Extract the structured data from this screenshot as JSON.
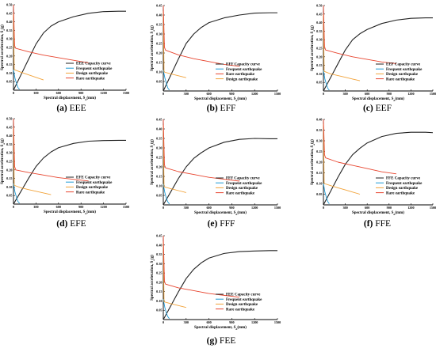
{
  "colors": {
    "capacity": "#222222",
    "frequent": "#1e9bd6",
    "design": "#f2a33a",
    "rare": "#e8452f",
    "axis": "#000000"
  },
  "common": {
    "xlabel": "Spectral displacement, S",
    "xlabel_sub": "d",
    "xlabel_unit": "(mm)",
    "ylabel": "Spectral acceleration, S",
    "ylabel_sub": "a",
    "ylabel_unit": "(g)",
    "xticks": [
      0,
      300,
      600,
      900,
      1200,
      1500
    ],
    "xlim": [
      0,
      1500
    ],
    "legend_labels": [
      "Frequent earthquake",
      "Design earthquake",
      "Rare earthquake"
    ]
  },
  "chart_data": [
    {
      "type": "line",
      "caption_letter": "(a)",
      "caption_text": "EEE",
      "ylim": [
        0,
        0.5
      ],
      "yticks": [
        0.05,
        0.1,
        0.15,
        0.2,
        0.25,
        0.3,
        0.35,
        0.4,
        0.45,
        0.5
      ],
      "legend_order": [
        "capacity",
        "frequent",
        "design",
        "rare"
      ],
      "series": [
        {
          "key": "capacity",
          "name": "EEE Capacity curve",
          "x": [
            0,
            100,
            200,
            300,
            400,
            500,
            600,
            800,
            1000,
            1200,
            1400,
            1500
          ],
          "y": [
            0,
            0.09,
            0.18,
            0.27,
            0.335,
            0.375,
            0.4,
            0.43,
            0.45,
            0.46,
            0.462,
            0.462
          ]
        },
        {
          "key": "frequent",
          "name": "Frequent earthquake",
          "x": [
            0,
            20,
            40,
            60,
            80
          ],
          "y": [
            0.12,
            0.07,
            0.04,
            0.015,
            0.005
          ]
        },
        {
          "key": "design",
          "name": "Design earthquake",
          "x": [
            0,
            10,
            100,
            200,
            300,
            400
          ],
          "y": [
            0.45,
            0.12,
            0.105,
            0.09,
            0.075,
            0.06
          ]
        },
        {
          "key": "rare",
          "name": "Rare earthquake",
          "x": [
            0,
            15,
            30,
            200,
            400,
            600,
            800,
            1000
          ],
          "y": [
            0.5,
            0.26,
            0.245,
            0.225,
            0.205,
            0.19,
            0.175,
            0.16
          ]
        }
      ]
    },
    {
      "type": "line",
      "caption_letter": "(b)",
      "caption_text": "EFF",
      "ylim": [
        0,
        0.45
      ],
      "yticks": [
        0.05,
        0.1,
        0.15,
        0.2,
        0.25,
        0.3,
        0.35,
        0.4,
        0.45
      ],
      "legend_order": [
        "capacity",
        "frequent",
        "rare",
        "design"
      ],
      "series": [
        {
          "key": "capacity",
          "name": "EFF Capacity curve",
          "x": [
            0,
            100,
            200,
            300,
            400,
            500,
            600,
            800,
            1000,
            1200,
            1400,
            1500
          ],
          "y": [
            0,
            0.085,
            0.17,
            0.25,
            0.3,
            0.335,
            0.36,
            0.385,
            0.4,
            0.41,
            0.412,
            0.412
          ]
        },
        {
          "key": "frequent",
          "name": "Frequent earthquake",
          "x": [
            0,
            20,
            40,
            60,
            80
          ],
          "y": [
            0.11,
            0.07,
            0.04,
            0.015,
            0.005
          ]
        },
        {
          "key": "design",
          "name": "Design earthquake",
          "x": [
            0,
            10,
            100,
            200,
            300
          ],
          "y": [
            0.42,
            0.1,
            0.09,
            0.08,
            0.07
          ]
        },
        {
          "key": "rare",
          "name": "Rare earthquake",
          "x": [
            0,
            15,
            30,
            200,
            400,
            600,
            800,
            1000
          ],
          "y": [
            0.45,
            0.23,
            0.215,
            0.19,
            0.17,
            0.155,
            0.14,
            0.13
          ]
        }
      ]
    },
    {
      "type": "line",
      "caption_letter": "(c)",
      "caption_text": "EEF",
      "ylim": [
        0,
        0.5
      ],
      "yticks": [
        0.05,
        0.1,
        0.15,
        0.2,
        0.25,
        0.3,
        0.35,
        0.4,
        0.45,
        0.5
      ],
      "legend_order": [
        "capacity",
        "frequent",
        "design",
        "rare"
      ],
      "series": [
        {
          "key": "capacity",
          "name": "EEF Capacity curve",
          "x": [
            0,
            100,
            200,
            300,
            400,
            500,
            600,
            800,
            1000,
            1200,
            1400,
            1500
          ],
          "y": [
            0,
            0.08,
            0.16,
            0.24,
            0.3,
            0.335,
            0.36,
            0.395,
            0.415,
            0.425,
            0.428,
            0.428
          ]
        },
        {
          "key": "frequent",
          "name": "Frequent earthquake",
          "x": [
            0,
            20,
            40,
            60,
            80
          ],
          "y": [
            0.12,
            0.07,
            0.04,
            0.015,
            0.005
          ]
        },
        {
          "key": "design",
          "name": "Design earthquake",
          "x": [
            0,
            10,
            100,
            200,
            300,
            400,
            500
          ],
          "y": [
            0.45,
            0.115,
            0.1,
            0.09,
            0.08,
            0.07,
            0.06
          ]
        },
        {
          "key": "rare",
          "name": "Rare earthquake",
          "x": [
            0,
            15,
            30,
            200,
            400,
            600,
            800,
            1000
          ],
          "y": [
            0.5,
            0.26,
            0.24,
            0.22,
            0.2,
            0.185,
            0.17,
            0.16
          ]
        }
      ]
    },
    {
      "type": "line",
      "caption_letter": "(d)",
      "caption_text": "EFE",
      "ylim": [
        0,
        0.5
      ],
      "yticks": [
        0.05,
        0.1,
        0.15,
        0.2,
        0.25,
        0.3,
        0.35,
        0.4,
        0.45,
        0.5
      ],
      "legend_order": [
        "capacity",
        "frequent",
        "design",
        "rare"
      ],
      "series": [
        {
          "key": "capacity",
          "name": "EFE Capacity curve",
          "x": [
            0,
            100,
            200,
            300,
            400,
            500,
            600,
            800,
            1000,
            1200,
            1400,
            1500
          ],
          "y": [
            0,
            0.075,
            0.15,
            0.22,
            0.27,
            0.305,
            0.33,
            0.355,
            0.368,
            0.372,
            0.373,
            0.373
          ]
        },
        {
          "key": "frequent",
          "name": "Frequent earthquake",
          "x": [
            0,
            20,
            40,
            60,
            80
          ],
          "y": [
            0.12,
            0.07,
            0.04,
            0.015,
            0.005
          ]
        },
        {
          "key": "design",
          "name": "Design earthquake",
          "x": [
            0,
            10,
            100,
            200,
            300,
            400,
            500
          ],
          "y": [
            0.45,
            0.11,
            0.095,
            0.085,
            0.075,
            0.065,
            0.055
          ]
        },
        {
          "key": "rare",
          "name": "Rare earthquake",
          "x": [
            0,
            15,
            30,
            200,
            400,
            600,
            800,
            1000
          ],
          "y": [
            0.5,
            0.22,
            0.2,
            0.185,
            0.17,
            0.155,
            0.145,
            0.135
          ]
        }
      ]
    },
    {
      "type": "line",
      "caption_letter": "(e)",
      "caption_text": "FFF",
      "ylim": [
        0,
        0.45
      ],
      "yticks": [
        0.05,
        0.1,
        0.15,
        0.2,
        0.25,
        0.3,
        0.35,
        0.4,
        0.45
      ],
      "legend_order": [
        "capacity",
        "frequent",
        "design",
        "rare"
      ],
      "series": [
        {
          "key": "capacity",
          "name": "FFF Capacity curve",
          "x": [
            0,
            100,
            200,
            300,
            400,
            500,
            600,
            800,
            1000,
            1200,
            1400,
            1500
          ],
          "y": [
            0,
            0.07,
            0.14,
            0.2,
            0.245,
            0.275,
            0.3,
            0.33,
            0.345,
            0.35,
            0.348,
            0.348
          ]
        },
        {
          "key": "frequent",
          "name": "Frequent earthquake",
          "x": [
            0,
            20,
            40,
            60,
            80
          ],
          "y": [
            0.11,
            0.065,
            0.035,
            0.015,
            0.005
          ]
        },
        {
          "key": "design",
          "name": "Design earthquake",
          "x": [
            0,
            10,
            100,
            200,
            300
          ],
          "y": [
            0.42,
            0.095,
            0.085,
            0.075,
            0.065
          ]
        },
        {
          "key": "rare",
          "name": "Rare earthquake",
          "x": [
            0,
            15,
            30,
            200,
            400,
            600,
            800,
            1000
          ],
          "y": [
            0.45,
            0.21,
            0.195,
            0.175,
            0.16,
            0.145,
            0.135,
            0.125
          ]
        }
      ]
    },
    {
      "type": "line",
      "caption_letter": "(f)",
      "caption_text": "FFE",
      "ylim": [
        0,
        0.4
      ],
      "yticks": [
        0.05,
        0.1,
        0.15,
        0.2,
        0.25,
        0.3,
        0.35,
        0.4
      ],
      "legend_order": [
        "capacity",
        "frequent",
        "design",
        "rare"
      ],
      "series": [
        {
          "key": "capacity",
          "name": "FFE Capacity curve",
          "x": [
            0,
            100,
            200,
            300,
            400,
            500,
            600,
            800,
            1000,
            1200,
            1400,
            1500
          ],
          "y": [
            0,
            0.065,
            0.13,
            0.19,
            0.235,
            0.265,
            0.29,
            0.32,
            0.335,
            0.34,
            0.34,
            0.338
          ]
        },
        {
          "key": "frequent",
          "name": "Frequent earthquake",
          "x": [
            0,
            20,
            40,
            60,
            80
          ],
          "y": [
            0.1,
            0.06,
            0.035,
            0.015,
            0.005
          ]
        },
        {
          "key": "design",
          "name": "Design earthquake",
          "x": [
            0,
            10,
            100,
            200,
            300,
            400,
            500
          ],
          "y": [
            0.38,
            0.1,
            0.09,
            0.08,
            0.07,
            0.06,
            0.05
          ]
        },
        {
          "key": "rare",
          "name": "Rare earthquake",
          "x": [
            0,
            15,
            30,
            200,
            400,
            600,
            800,
            1000
          ],
          "y": [
            0.4,
            0.235,
            0.22,
            0.2,
            0.185,
            0.17,
            0.155,
            0.145
          ]
        }
      ]
    },
    {
      "type": "line",
      "caption_letter": "(g)",
      "caption_text": "FEE",
      "ylim": [
        0,
        0.45
      ],
      "yticks": [
        0.05,
        0.1,
        0.15,
        0.2,
        0.25,
        0.3,
        0.35,
        0.4,
        0.45
      ],
      "legend_order": [
        "capacity",
        "frequent",
        "design",
        "rare"
      ],
      "series": [
        {
          "key": "capacity",
          "name": "FEE Capacity curve",
          "x": [
            0,
            100,
            200,
            300,
            400,
            500,
            600,
            800,
            1000,
            1200,
            1400,
            1500
          ],
          "y": [
            0,
            0.075,
            0.15,
            0.22,
            0.27,
            0.305,
            0.33,
            0.355,
            0.365,
            0.368,
            0.37,
            0.37
          ]
        },
        {
          "key": "frequent",
          "name": "Frequent earthquake",
          "x": [
            0,
            20,
            40,
            60,
            80
          ],
          "y": [
            0.11,
            0.065,
            0.035,
            0.015,
            0.005
          ]
        },
        {
          "key": "design",
          "name": "Design earthquake",
          "x": [
            0,
            10,
            100,
            200,
            300
          ],
          "y": [
            0.42,
            0.095,
            0.085,
            0.075,
            0.065
          ]
        },
        {
          "key": "rare",
          "name": "Rare earthquake",
          "x": [
            0,
            15,
            30,
            200,
            400,
            600,
            800,
            1000
          ],
          "y": [
            0.45,
            0.205,
            0.19,
            0.17,
            0.155,
            0.14,
            0.13,
            0.12
          ]
        }
      ]
    }
  ]
}
